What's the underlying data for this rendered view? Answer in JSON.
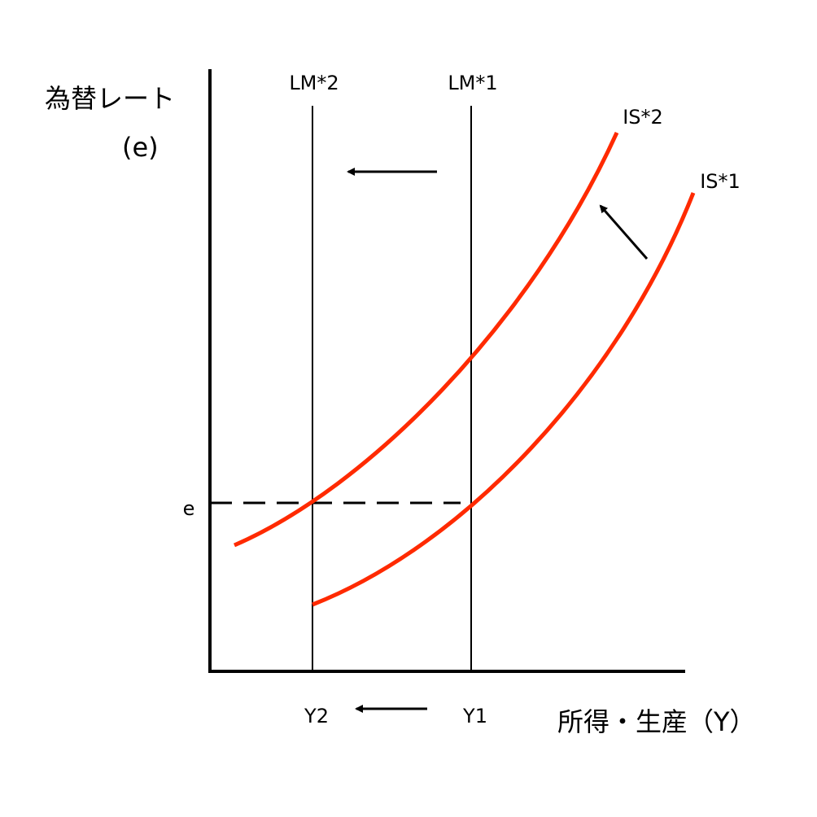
{
  "labels": {
    "y_axis_title": "為替レート",
    "y_axis_symbol": "(e)",
    "x_axis_title": "所得・生産（Y）",
    "lm2": "LM*2",
    "lm1": "LM*1",
    "is2": "IS*2",
    "is1": "IS*1",
    "e_tick": "e",
    "y2_tick": "Y2",
    "y1_tick": "Y1"
  },
  "colors": {
    "curve": "#ff2a00",
    "axis": "#000000"
  },
  "arrows": [
    "lm-shift-left",
    "is-shift-up-left",
    "income-shift-left"
  ]
}
